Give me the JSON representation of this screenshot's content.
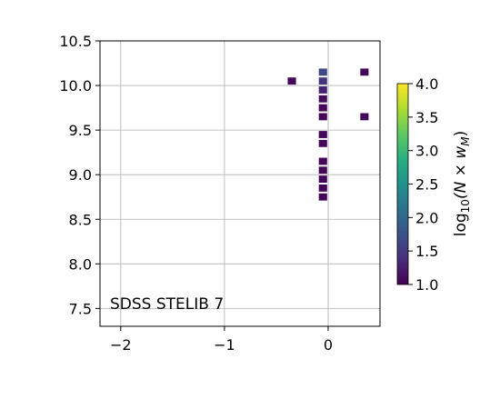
{
  "chart_data": {
    "type": "heatmap",
    "title": "",
    "xlabel": "",
    "ylabel": "",
    "xlim": [
      -2.2,
      0.5
    ],
    "ylim": [
      7.3,
      10.5
    ],
    "x_ticks": [
      -2,
      -1,
      0
    ],
    "x_tick_labels": [
      "−2",
      "−1",
      "0"
    ],
    "y_ticks": [
      7.5,
      8.0,
      8.5,
      9.0,
      9.5,
      10.0,
      10.5
    ],
    "y_tick_labels": [
      "7.5",
      "8.0",
      "8.5",
      "9.0",
      "9.5",
      "10.0",
      "10.5"
    ],
    "grid": true,
    "annotation": "SDSS STELIB 7",
    "annotation_position": "bottom-left",
    "cell_width": 0.08,
    "cell_height": 0.08,
    "cells": [
      {
        "x": -0.35,
        "y": 10.05,
        "value": 1.05
      },
      {
        "x": -0.05,
        "y": 10.15,
        "value": 1.65
      },
      {
        "x": -0.05,
        "y": 10.05,
        "value": 1.45
      },
      {
        "x": -0.05,
        "y": 9.95,
        "value": 1.3
      },
      {
        "x": -0.05,
        "y": 9.85,
        "value": 1.1
      },
      {
        "x": -0.05,
        "y": 9.75,
        "value": 1.05
      },
      {
        "x": -0.05,
        "y": 9.65,
        "value": 1.05
      },
      {
        "x": -0.05,
        "y": 9.45,
        "value": 1.05
      },
      {
        "x": -0.05,
        "y": 9.35,
        "value": 1.05
      },
      {
        "x": -0.05,
        "y": 9.15,
        "value": 1.05
      },
      {
        "x": -0.05,
        "y": 9.05,
        "value": 1.05
      },
      {
        "x": -0.05,
        "y": 8.95,
        "value": 1.05
      },
      {
        "x": -0.05,
        "y": 8.85,
        "value": 1.05
      },
      {
        "x": -0.05,
        "y": 8.75,
        "value": 1.05
      },
      {
        "x": 0.35,
        "y": 10.15,
        "value": 1.05
      },
      {
        "x": 0.35,
        "y": 9.65,
        "value": 1.05
      }
    ],
    "colorbar": {
      "label": "log₁₀(N × wₘ)",
      "label_main": "log",
      "label_sub": "10",
      "label_paren": "(N × w",
      "label_paren_sub": "M",
      "label_close": ")",
      "min": 1.0,
      "max": 4.0,
      "ticks": [
        1.0,
        1.5,
        2.0,
        2.5,
        3.0,
        3.5,
        4.0
      ],
      "tick_labels": [
        "1.0",
        "1.5",
        "2.0",
        "2.5",
        "3.0",
        "3.5",
        "4.0"
      ],
      "colormap": "viridis"
    }
  }
}
